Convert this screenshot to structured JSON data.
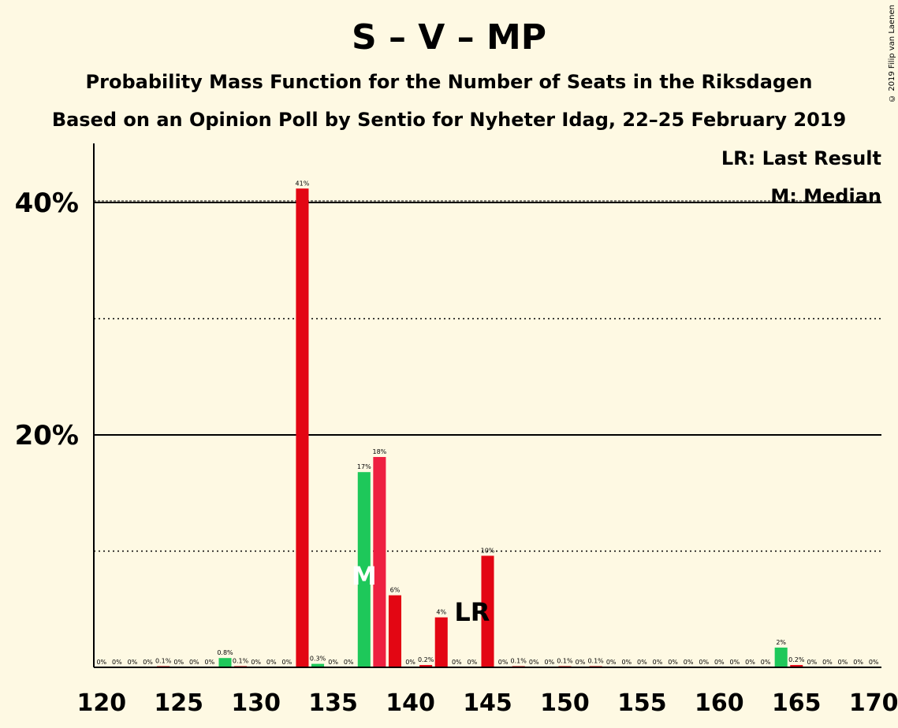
{
  "title": "S – V – MP",
  "subtitle": "Probability Mass Function for the Number of Seats in the Riksdagen",
  "subtitle2": "Based on an Opinion Poll by Sentio for Nyheter Idag, 22–25 February 2019",
  "copyright": "© 2019 Filip van Laenen",
  "legend": {
    "lr": "LR: Last Result",
    "m": "M: Median"
  },
  "markers": {
    "lr_text": "LR",
    "lr_seat": 144,
    "m_text": "M",
    "m_seat": 137
  },
  "colors": {
    "red": "#e30613",
    "green": "#1ec85a",
    "pink": "#ee2040",
    "background": "#fef9e3"
  },
  "chart_data": {
    "type": "bar",
    "x": [
      120,
      121,
      122,
      123,
      124,
      125,
      126,
      127,
      128,
      129,
      130,
      131,
      132,
      133,
      134,
      135,
      136,
      137,
      138,
      139,
      140,
      141,
      142,
      143,
      144,
      145,
      146,
      147,
      148,
      149,
      150,
      151,
      152,
      153,
      154,
      155,
      156,
      157,
      158,
      159,
      160,
      161,
      162,
      163,
      164,
      165,
      166,
      167,
      168,
      169,
      170
    ],
    "values": [
      0,
      0,
      0,
      0,
      0.1,
      0,
      0,
      0,
      0.8,
      0.1,
      0,
      0,
      0,
      41.2,
      0.3,
      0,
      0,
      16.8,
      18.1,
      6.2,
      0,
      0.2,
      4.3,
      0,
      0,
      9.6,
      0,
      0.1,
      0,
      0,
      0.1,
      0,
      0.1,
      0,
      0,
      0,
      0,
      0,
      0,
      0,
      0,
      0,
      0,
      0,
      1.7,
      0.2,
      0,
      0,
      0,
      0,
      0
    ],
    "labels": [
      "0%",
      "0%",
      "0%",
      "0%",
      "0.1%",
      "0%",
      "0%",
      "0%",
      "0.8%",
      "0.1%",
      "0%",
      "0%",
      "0%",
      "41%",
      "0.3%",
      "0%",
      "0%",
      "17%",
      "18%",
      "6%",
      "0%",
      "0.2%",
      "4%",
      "0%",
      "0%",
      "10%",
      "0%",
      "0.1%",
      "0%",
      "0%",
      "0.1%",
      "0%",
      "0.1%",
      "0%",
      "0%",
      "0%",
      "0%",
      "0%",
      "0%",
      "0%",
      "0%",
      "0%",
      "0%",
      "0%",
      "2%",
      "0.2%",
      "0%",
      "0%",
      "0%",
      "0%",
      "0%"
    ],
    "bar_colors": {
      "green": [
        128,
        134,
        137,
        164
      ],
      "pink": [
        138
      ]
    },
    "xticks": [
      120,
      125,
      130,
      135,
      140,
      145,
      150,
      155,
      160,
      165,
      170
    ],
    "xtick_labels": [
      "120",
      "125",
      "130",
      "135",
      "140",
      "145",
      "150",
      "155",
      "160",
      "165",
      "170"
    ],
    "yticks": [
      20,
      40
    ],
    "ytick_labels": [
      "20%",
      "40%"
    ],
    "ygrid_dotted": [
      10,
      30
    ],
    "ylim": [
      0,
      45
    ],
    "xlim": [
      120,
      170
    ],
    "xlabel": "",
    "ylabel": ""
  }
}
